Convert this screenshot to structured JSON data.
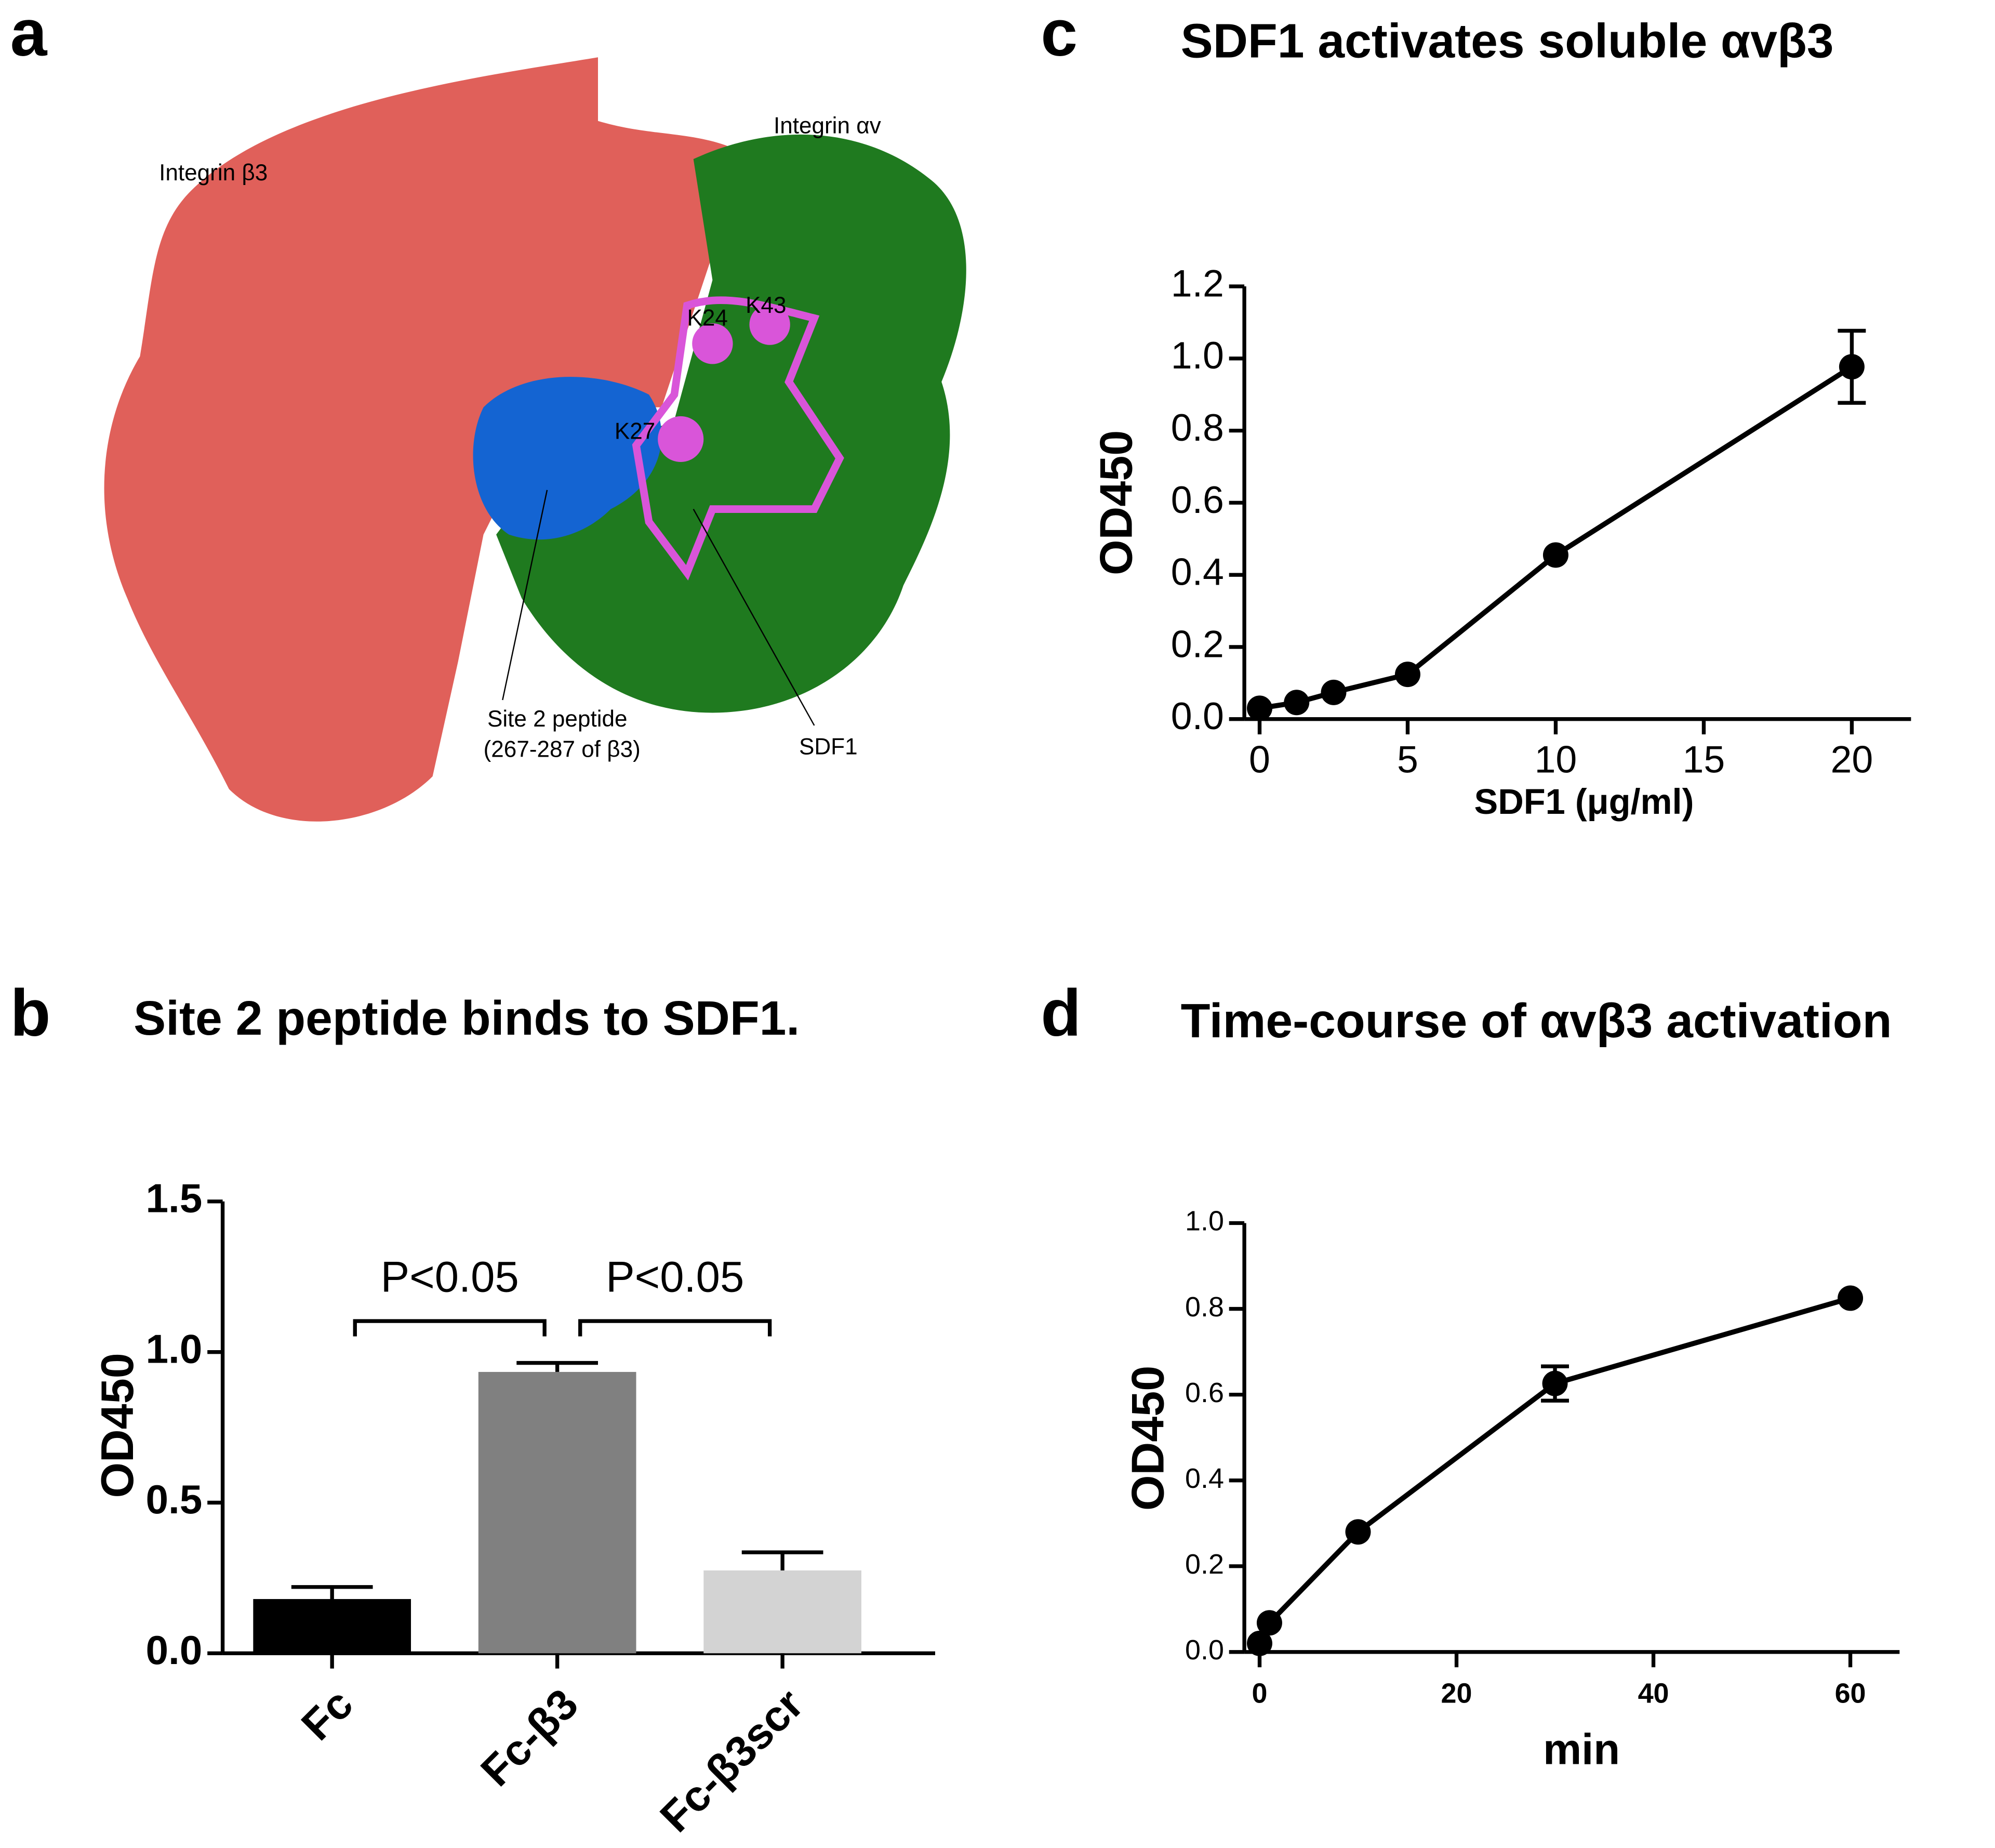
{
  "panel_labels": [
    "a",
    "b",
    "c",
    "d"
  ],
  "structure": {
    "integrin_b3": "Integrin β3",
    "integrin_av": "Integrin αv",
    "k24": "K24",
    "k43": "K43",
    "k27": "K27",
    "site2_line1": "Site 2 peptide",
    "site2_line2": "(267-287 of β3)",
    "sdf1": "SDF1"
  },
  "chart_data": [
    {
      "type": "bar",
      "title": "Site 2 peptide binds to SDF1.",
      "y_label": "OD450",
      "categories": [
        "Fc",
        "Fc-β3",
        "Fc-β3scr"
      ],
      "values": [
        0.18,
        0.934,
        0.275
      ],
      "errors": [
        0.04,
        0.03,
        0.06
      ],
      "colors": [
        "#000000",
        "#808080",
        "#d3d3d3"
      ],
      "annotations": [
        "P<0.05",
        "P<0.05"
      ],
      "ylim": [
        0,
        1.5
      ],
      "yticks": [
        {
          "value": 0,
          "label": "0.0"
        },
        0.5,
        {
          "value": 1,
          "label": "1.0"
        },
        1.5
      ]
    },
    {
      "type": "line",
      "title": "SDF1 activates soluble αvβ3",
      "x_label": "SDF1 (μg/ml)",
      "y_label": "OD450",
      "x": [
        0,
        1.25,
        2.5,
        5,
        10,
        20
      ],
      "values": [
        0.03,
        0.046,
        0.074,
        0.124,
        0.455,
        0.977
      ],
      "errors": [
        null,
        null,
        null,
        null,
        null,
        0.1
      ],
      "color": "#000000",
      "xlim": [
        0,
        22
      ],
      "xticks": [
        0,
        5,
        10,
        15,
        20
      ],
      "ylim": [
        0,
        1.2
      ],
      "yticks": [
        {
          "value": 0,
          "label": "0.0"
        },
        0.2,
        0.4,
        0.6,
        0.8,
        {
          "value": 1,
          "label": "1.0"
        },
        1.2
      ]
    },
    {
      "type": "line",
      "title": "Time-course of αvβ3 activation",
      "x_label": "min",
      "y_label": "OD450",
      "x": [
        0,
        1,
        10,
        30,
        60
      ],
      "values": [
        0.02,
        0.068,
        0.28,
        0.626,
        0.825
      ],
      "errors": [
        null,
        null,
        null,
        0.04,
        null
      ],
      "color": "#000000",
      "xlim": [
        0,
        65
      ],
      "xticks": [
        0,
        20,
        40,
        60
      ],
      "ylim": [
        0,
        1
      ],
      "yticks": [
        {
          "value": 0,
          "label": "0.0"
        },
        0.2,
        0.4,
        0.6,
        0.8,
        {
          "value": 1,
          "label": "1.0"
        }
      ]
    }
  ]
}
